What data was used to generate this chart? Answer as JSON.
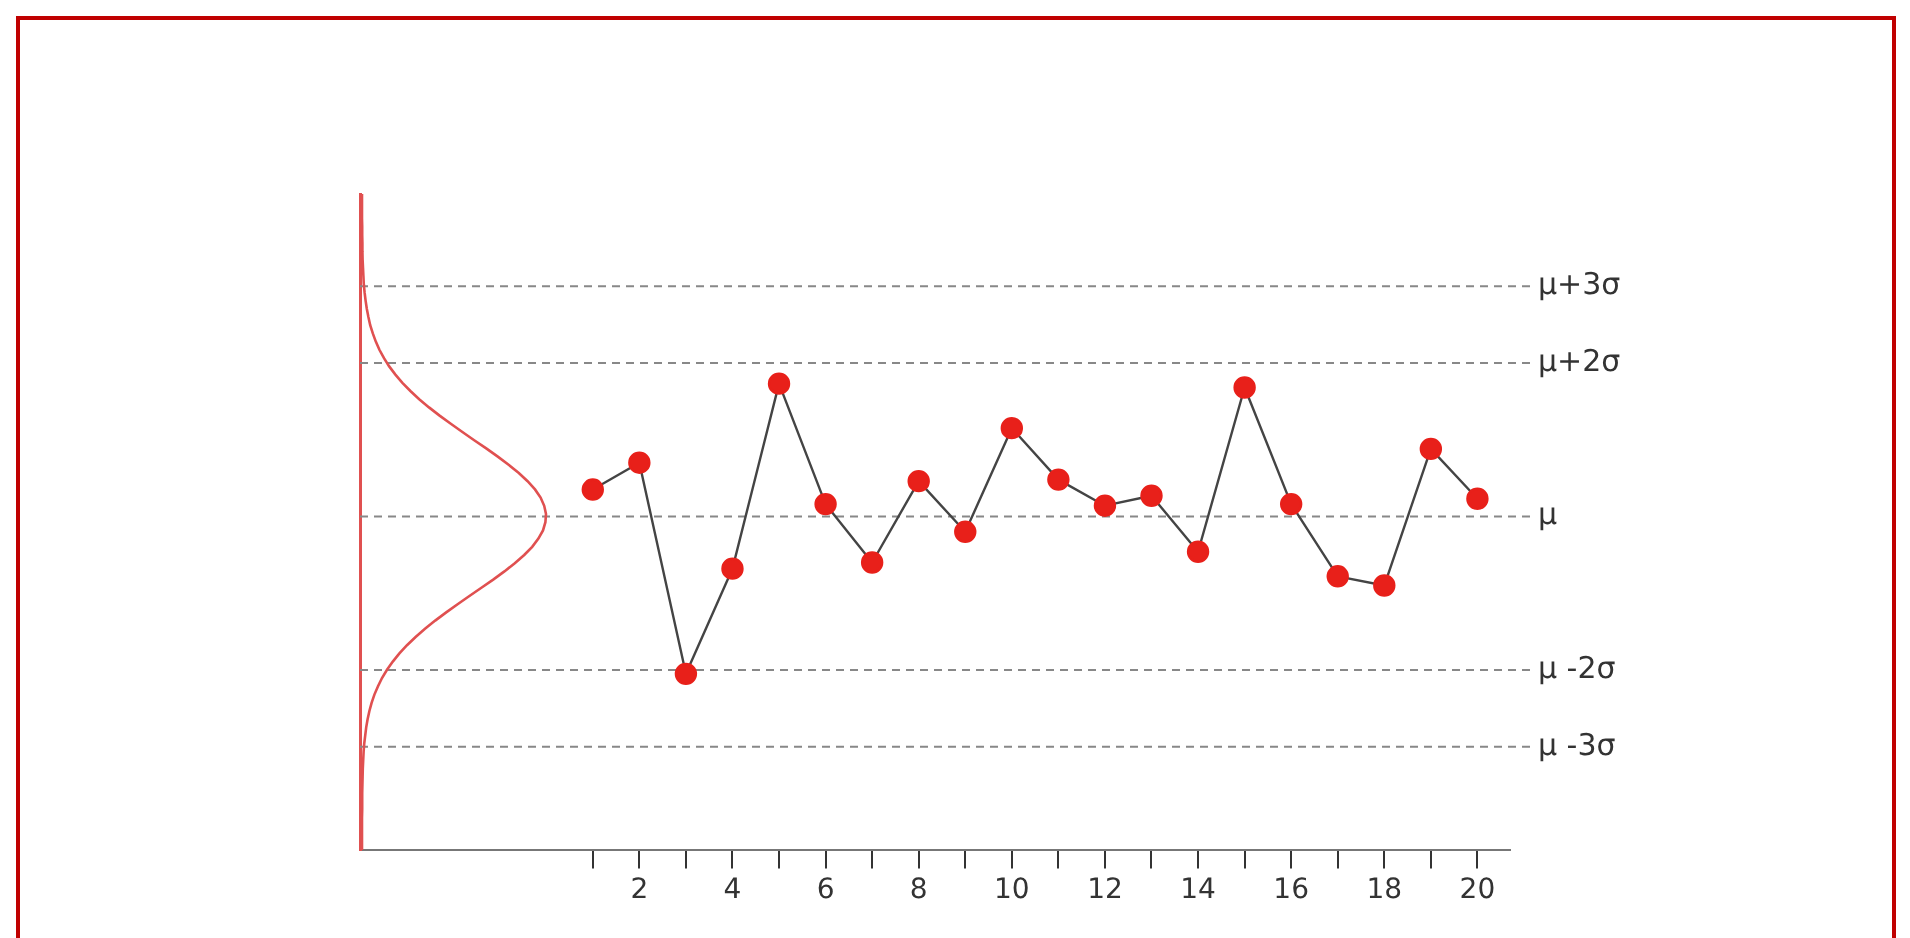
{
  "chart_data": {
    "type": "line",
    "x": [
      1,
      2,
      3,
      4,
      5,
      6,
      7,
      8,
      9,
      10,
      11,
      12,
      13,
      14,
      15,
      16,
      17,
      18,
      19,
      20
    ],
    "series": [
      {
        "color": "#e8201a",
        "values": [
          0.35,
          0.7,
          -2.05,
          -0.68,
          1.73,
          0.16,
          -0.6,
          0.46,
          -0.2,
          1.15,
          0.48,
          0.14,
          0.27,
          -0.46,
          1.68,
          0.16,
          -0.78,
          -0.9,
          0.88,
          0.23
        ]
      }
    ],
    "xlim": [
      -4,
      20.7
    ],
    "ylim": [
      -4.35,
      4.2
    ],
    "xticks": [
      {
        "value": 1,
        "label": null
      },
      2,
      {
        "value": 3,
        "label": null
      },
      4,
      {
        "value": 5,
        "label": null
      },
      6,
      {
        "value": 7,
        "label": null
      },
      8,
      {
        "value": 9,
        "label": null
      },
      10,
      {
        "value": 11,
        "label": null
      },
      12,
      {
        "value": 13,
        "label": null
      },
      14,
      {
        "value": 15,
        "label": null
      },
      16,
      {
        "value": 17,
        "label": null
      },
      18,
      {
        "value": 19,
        "label": null
      },
      20
    ],
    "ref_lines": [
      {
        "axis": "y",
        "value": 3,
        "label": "μ+3σ",
        "color": "#888888",
        "line_style": "dashed"
      },
      {
        "axis": "y",
        "value": 2,
        "label": "μ+2σ",
        "color": "#888888",
        "line_style": "dashed"
      },
      {
        "axis": "y",
        "value": 0,
        "label": "μ",
        "color": "#888888",
        "line_style": "dashed"
      },
      {
        "axis": "y",
        "value": -2,
        "label": "μ -2σ",
        "color": "#888888",
        "line_style": "dashed"
      },
      {
        "axis": "y",
        "value": -3,
        "label": "μ -3σ",
        "color": "#888888",
        "line_style": "dashed"
      }
    ],
    "tick_labels": "x",
    "grid": false,
    "legend": false,
    "marker": "circle",
    "line_style": "solid"
  }
}
